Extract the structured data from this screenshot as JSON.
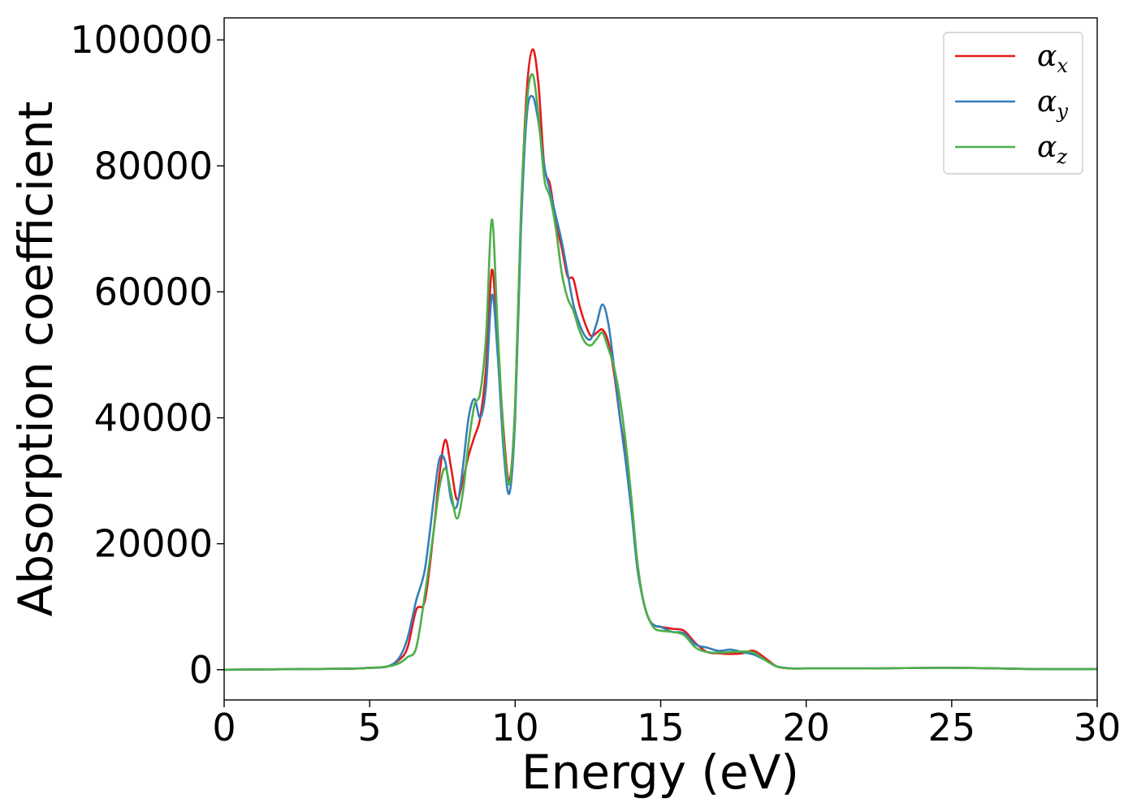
{
  "chart_data": {
    "type": "line",
    "xlabel": "Energy (eV)",
    "ylabel": "Absorption coefficient",
    "xlim": [
      0,
      30
    ],
    "ylim": [
      -4800,
      103500
    ],
    "xticks": [
      0,
      5,
      10,
      15,
      20,
      25,
      30
    ],
    "yticks": [
      0,
      20000,
      40000,
      60000,
      80000,
      100000
    ],
    "grid": false,
    "legend_position": "top-right",
    "series": [
      {
        "name": "α",
        "subscript": "x",
        "color": "#e41a1c",
        "x": [
          0,
          4,
          5,
          5.6,
          6.0,
          6.3,
          6.6,
          6.9,
          7.2,
          7.4,
          7.6,
          7.8,
          8.0,
          8.2,
          8.4,
          8.6,
          8.8,
          9.0,
          9.2,
          9.4,
          9.6,
          9.8,
          10.0,
          10.2,
          10.4,
          10.6,
          10.8,
          11.0,
          11.2,
          11.4,
          11.6,
          11.8,
          12.0,
          12.2,
          12.4,
          12.6,
          12.8,
          13.0,
          13.2,
          13.4,
          13.6,
          13.8,
          14.0,
          14.2,
          14.4,
          14.6,
          14.8,
          15.0,
          15.4,
          15.8,
          16.2,
          16.6,
          17.0,
          17.4,
          17.8,
          18.2,
          18.6,
          19.0,
          19.5,
          20,
          22,
          25,
          28,
          30
        ],
        "y": [
          0,
          150,
          300,
          500,
          1500,
          3500,
          9500,
          11000,
          22000,
          31000,
          36500,
          32000,
          27000,
          30000,
          34000,
          37000,
          40000,
          48000,
          63500,
          52000,
          38000,
          30000,
          42000,
          72000,
          92000,
          98500,
          93000,
          80000,
          77000,
          71000,
          67000,
          62500,
          62000,
          58000,
          55000,
          53000,
          53500,
          54000,
          52000,
          47000,
          40000,
          34000,
          26000,
          17000,
          11000,
          8000,
          7000,
          6800,
          6500,
          6200,
          4200,
          2800,
          2600,
          2500,
          2600,
          3000,
          1800,
          500,
          200,
          200,
          200,
          300,
          100,
          100
        ]
      },
      {
        "name": "α",
        "subscript": "y",
        "color": "#377eb8",
        "x": [
          0,
          4,
          5,
          5.6,
          6.0,
          6.3,
          6.6,
          6.9,
          7.2,
          7.4,
          7.6,
          7.8,
          8.0,
          8.2,
          8.4,
          8.6,
          8.8,
          9.0,
          9.2,
          9.4,
          9.6,
          9.8,
          10.0,
          10.2,
          10.4,
          10.6,
          10.8,
          11.0,
          11.2,
          11.4,
          11.6,
          11.8,
          12.0,
          12.2,
          12.4,
          12.6,
          12.8,
          13.0,
          13.2,
          13.4,
          13.6,
          13.8,
          14.0,
          14.2,
          14.4,
          14.6,
          14.8,
          15.0,
          15.4,
          15.8,
          16.2,
          16.6,
          17.0,
          17.4,
          17.8,
          18.2,
          18.6,
          19.0,
          19.5,
          20,
          22,
          25,
          28,
          30
        ],
        "y": [
          0,
          150,
          300,
          500,
          1800,
          5000,
          11000,
          16000,
          27000,
          33500,
          33000,
          27000,
          26000,
          32000,
          40000,
          43000,
          40000,
          45000,
          59500,
          50000,
          35000,
          28000,
          40000,
          70000,
          88000,
          91000,
          87000,
          80000,
          76000,
          72000,
          68000,
          63000,
          58000,
          55000,
          53000,
          52500,
          55000,
          58000,
          55000,
          48000,
          40000,
          33000,
          25000,
          16000,
          11000,
          8000,
          7000,
          6800,
          6000,
          5800,
          4000,
          3500,
          3000,
          3200,
          2800,
          2400,
          1500,
          500,
          200,
          200,
          200,
          300,
          100,
          100
        ]
      },
      {
        "name": "α",
        "subscript": "z",
        "color": "#4daf4a",
        "x": [
          0,
          4,
          5,
          5.6,
          6.0,
          6.3,
          6.6,
          6.9,
          7.2,
          7.4,
          7.6,
          7.8,
          8.0,
          8.2,
          8.4,
          8.6,
          8.8,
          9.0,
          9.2,
          9.4,
          9.6,
          9.8,
          10.0,
          10.2,
          10.4,
          10.6,
          10.8,
          11.0,
          11.2,
          11.4,
          11.6,
          11.8,
          12.0,
          12.2,
          12.4,
          12.6,
          12.8,
          13.0,
          13.2,
          13.4,
          13.6,
          13.8,
          14.0,
          14.2,
          14.4,
          14.6,
          14.8,
          15.0,
          15.4,
          15.8,
          16.2,
          16.6,
          17.0,
          17.4,
          17.8,
          18.2,
          18.6,
          19.0,
          19.5,
          20,
          22,
          25,
          28,
          30
        ],
        "y": [
          0,
          150,
          300,
          500,
          1000,
          2000,
          3500,
          12000,
          22000,
          29000,
          32000,
          28000,
          24000,
          28000,
          36000,
          42000,
          44000,
          53000,
          71500,
          54000,
          37000,
          29500,
          42000,
          73000,
          90000,
          94500,
          88000,
          78000,
          75000,
          70000,
          63000,
          59000,
          57000,
          54000,
          52000,
          51500,
          52500,
          53500,
          51000,
          48000,
          43000,
          36000,
          27000,
          17000,
          11000,
          8000,
          6500,
          6200,
          6000,
          5500,
          3500,
          2800,
          2700,
          2800,
          2900,
          2700,
          1500,
          500,
          200,
          200,
          200,
          300,
          100,
          100
        ]
      }
    ]
  }
}
